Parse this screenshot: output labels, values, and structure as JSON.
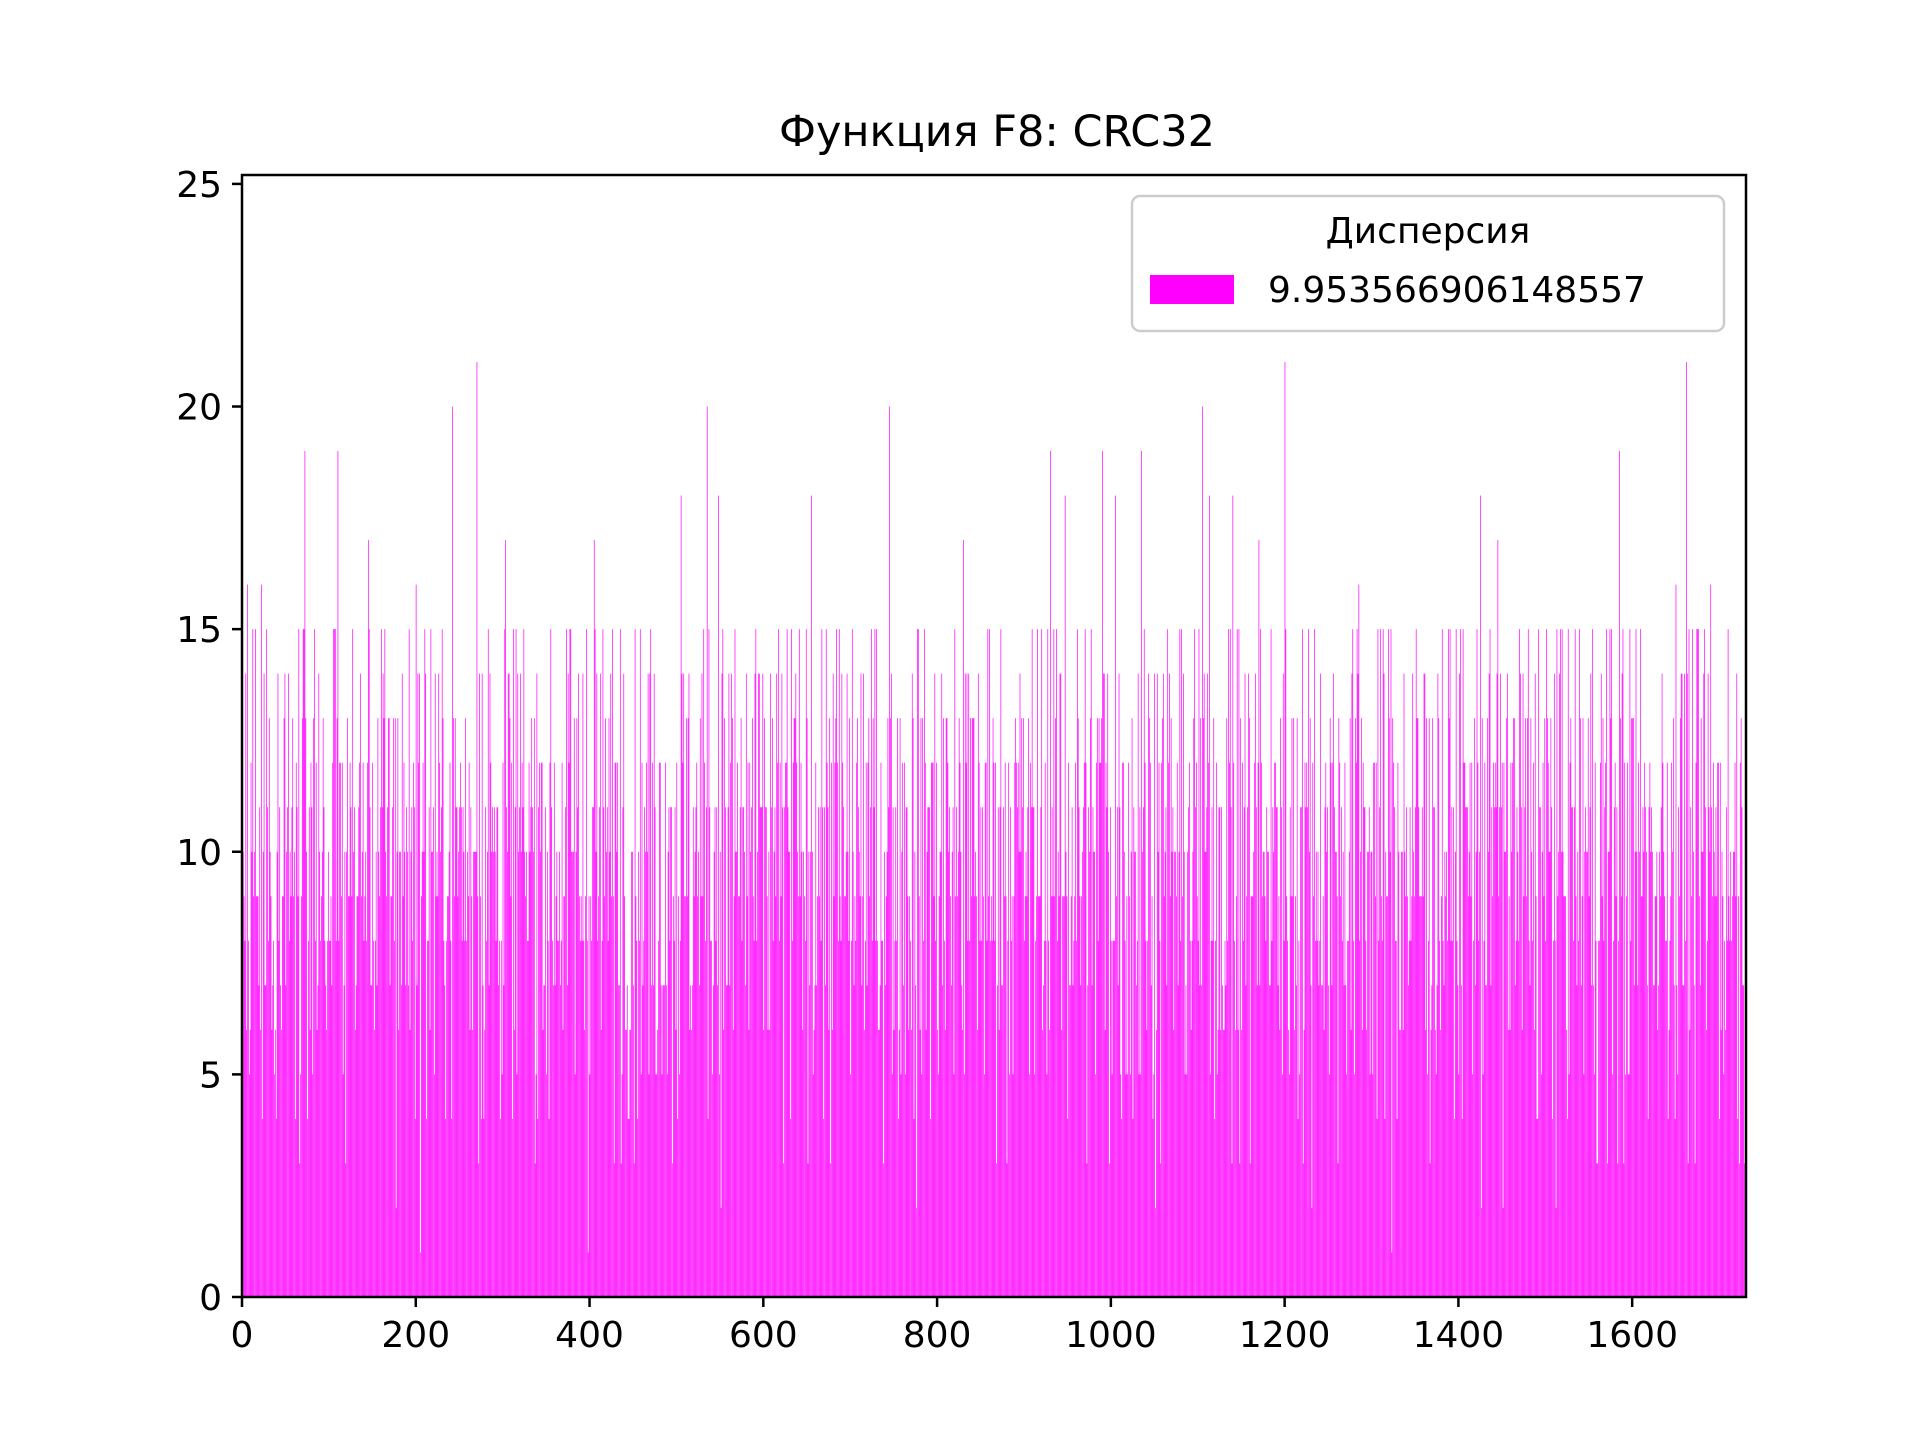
{
  "colors": {
    "bar": "#ff00ff",
    "axis": "#000000",
    "background": "#ffffff"
  },
  "chart_data": {
    "type": "bar",
    "title": "Функция F8: CRC32",
    "xlabel": "",
    "ylabel": "",
    "xlim": [
      0,
      1731
    ],
    "ylim": [
      0,
      25.2
    ],
    "xticks": [
      0,
      200,
      400,
      600,
      800,
      1000,
      1200,
      1400,
      1600
    ],
    "yticks": [
      0,
      5,
      10,
      15,
      20,
      25
    ],
    "xtick_labels": [
      "0",
      "200",
      "400",
      "600",
      "800",
      "1000",
      "1200",
      "1400",
      "1600"
    ],
    "ytick_labels": [
      "0",
      "5",
      "10",
      "15",
      "20",
      "25"
    ],
    "bin_count": 1731,
    "legend": {
      "title": "Дисперсия",
      "position": "top-right",
      "entries": [
        {
          "label": "9.953566906148557"
        }
      ]
    },
    "series": [
      {
        "name": "9.953566906148557",
        "mean": 10,
        "variance": 9.953566906148557,
        "peaks": [
          [
            6,
            16
          ],
          [
            22,
            16
          ],
          [
            72,
            19
          ],
          [
            110,
            19
          ],
          [
            145,
            17
          ],
          [
            200,
            16
          ],
          [
            242,
            20
          ],
          [
            270,
            21
          ],
          [
            303,
            17
          ],
          [
            405,
            17
          ],
          [
            505,
            18
          ],
          [
            535,
            20
          ],
          [
            548,
            18
          ],
          [
            655,
            18
          ],
          [
            745,
            20
          ],
          [
            830,
            17
          ],
          [
            930,
            19
          ],
          [
            947,
            18
          ],
          [
            990,
            19
          ],
          [
            1005,
            18
          ],
          [
            1035,
            19
          ],
          [
            1105,
            20
          ],
          [
            1113,
            18
          ],
          [
            1140,
            18
          ],
          [
            1170,
            17
          ],
          [
            1200,
            21
          ],
          [
            1285,
            16
          ],
          [
            1425,
            18
          ],
          [
            1445,
            17
          ],
          [
            1585,
            19
          ],
          [
            1650,
            16
          ],
          [
            1662,
            21
          ],
          [
            1690,
            16
          ]
        ]
      }
    ]
  }
}
